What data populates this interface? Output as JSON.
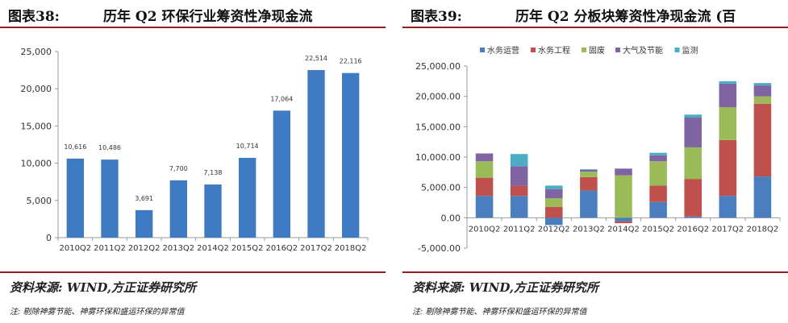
{
  "left": {
    "fig_num": "图表38:",
    "title": "历年 Q2 环保行业筹资性净现金流",
    "source": "资料来源: WIND,方正证券研究所",
    "note": "注: 剔除神雾节能、神雾环保和盛运环保的异常值"
  },
  "right": {
    "fig_num": "图表39:",
    "title": "历年 Q2 分板块筹资性净现金流 (百",
    "source": "资料来源: WIND,方正证券研究所",
    "note": "注: 剔除神雾节能、神雾环保和盛运环保的异常值"
  },
  "chart_data": [
    {
      "type": "bar",
      "title": "历年 Q2 环保行业筹资性净现金流",
      "categories": [
        "2010Q2",
        "2011Q2",
        "2012Q2",
        "2013Q2",
        "2014Q2",
        "2015Q2",
        "2016Q2",
        "2017Q2",
        "2018Q2"
      ],
      "values": [
        10616,
        10486,
        3691,
        7700,
        7138,
        10714,
        17064,
        22514,
        22116
      ],
      "value_labels": [
        "10,616",
        "10,486",
        "3,691",
        "7,700",
        "7,138",
        "10,714",
        "17,064",
        "22,514",
        "22,116"
      ],
      "ylim": [
        0,
        25000
      ],
      "yticks": [
        "0",
        "5,000",
        "10,000",
        "15,000",
        "20,000",
        "25,000"
      ],
      "color": "#3f7bc2",
      "grid": false
    },
    {
      "type": "bar",
      "stacked": true,
      "title": "历年 Q2 分板块筹资性净现金流 (百",
      "categories": [
        "2010Q2",
        "2011Q2",
        "2012Q2",
        "2013Q2",
        "2014Q2",
        "2015Q2",
        "2016Q2",
        "2017Q2",
        "2018Q2"
      ],
      "series": [
        {
          "name": "水务运营",
          "color": "#4a7ebf",
          "values": [
            3600,
            3600,
            -1200,
            4500,
            -600,
            2600,
            200,
            3600,
            6800
          ]
        },
        {
          "name": "水务工程",
          "color": "#c0504d",
          "values": [
            3000,
            1700,
            1800,
            2200,
            -300,
            2700,
            6200,
            9200,
            12000
          ]
        },
        {
          "name": "固废",
          "color": "#9bbb59",
          "values": [
            2700,
            0,
            1400,
            900,
            7000,
            4000,
            5200,
            5400,
            1200
          ]
        },
        {
          "name": "大气及节能",
          "color": "#8064a2",
          "values": [
            1300,
            3200,
            1500,
            300,
            1100,
            1000,
            4900,
            3900,
            1800
          ]
        },
        {
          "name": "监测",
          "color": "#4bacc6",
          "values": [
            0,
            2000,
            600,
            100,
            0,
            400,
            500,
            400,
            400
          ]
        }
      ],
      "ylim": [
        -5000,
        25000
      ],
      "yticks": [
        "-5,000.00",
        "0.00",
        "5,000.00",
        "10,000.00",
        "15,000.00",
        "20,000.00",
        "25,000.00"
      ],
      "legend_position": "top-left",
      "grid": false
    }
  ]
}
